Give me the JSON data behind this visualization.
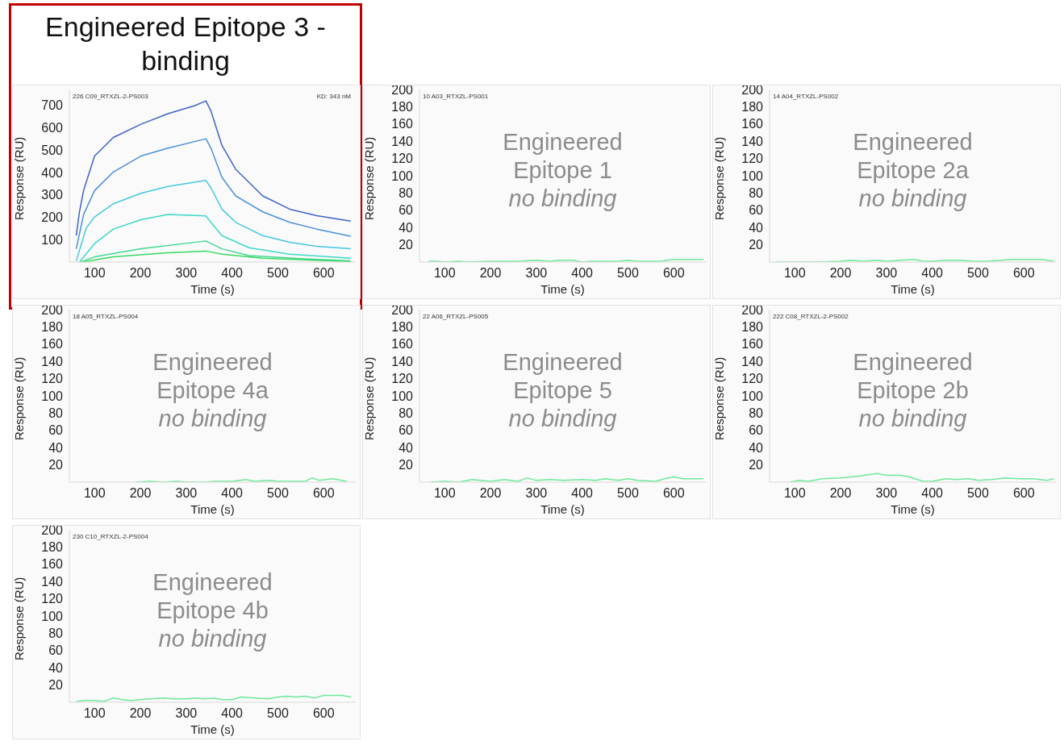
{
  "chart_data": [
    {
      "type": "line",
      "title": "Engineered Epitope 3 - binding",
      "xlabel": "Time (s)",
      "ylabel": "Response (RU)",
      "annotations": [
        "226 C09_RTXZL-2-PS003",
        "KD: 343 nM"
      ],
      "xlim": [
        45,
        670
      ],
      "xticks": [
        100,
        200,
        300,
        400,
        500,
        600
      ],
      "ylim": [
        0,
        770
      ],
      "yticks": [
        100,
        200,
        300,
        400,
        500,
        600,
        700
      ],
      "series": [
        {
          "color": "#3f63c8",
          "x": [
            60,
            67,
            76,
            100,
            141,
            201,
            260,
            319,
            343,
            354,
            378,
            408,
            467,
            526,
            585,
            659
          ],
          "values": [
            118,
            224,
            319,
            473,
            556,
            615,
            662,
            698,
            719,
            674,
            520,
            414,
            295,
            236,
            207,
            183
          ]
        },
        {
          "color": "#4a90d8",
          "x": [
            60,
            76,
            100,
            141,
            201,
            260,
            343,
            354,
            378,
            408,
            467,
            526,
            585,
            659
          ],
          "values": [
            59,
            212,
            319,
            402,
            473,
            508,
            550,
            508,
            378,
            295,
            224,
            177,
            147,
            115
          ]
        },
        {
          "color": "#45c8e0",
          "x": [
            60,
            82,
            100,
            141,
            201,
            260,
            343,
            354,
            378,
            408,
            467,
            526,
            585,
            659
          ],
          "values": [
            5,
            153,
            201,
            260,
            307,
            337,
            364,
            331,
            236,
            177,
            118,
            88,
            70,
            59
          ]
        },
        {
          "color": "#3cd8c8",
          "x": [
            67,
            100,
            141,
            201,
            260,
            343,
            354,
            378,
            437,
            526,
            659
          ],
          "values": [
            0,
            82,
            147,
            189,
            212,
            206,
            177,
            118,
            64,
            35,
            17
          ]
        },
        {
          "color": "#40d890",
          "x": [
            70,
            100,
            201,
            343,
            378,
            437,
            556,
            659
          ],
          "values": [
            0,
            23,
            59,
            94,
            59,
            29,
            14,
            5
          ]
        },
        {
          "color": "#38d860",
          "x": [
            73,
            141,
            260,
            343,
            378,
            467,
            659
          ],
          "values": [
            0,
            23,
            41,
            49,
            35,
            17,
            2
          ]
        }
      ]
    },
    {
      "type": "line",
      "xlabel": "Time (s)",
      "ylabel": "Response (RU)",
      "annotations": [
        "10 A03_RTXZL-PS001",
        "Engineered Epitope 1",
        "no binding"
      ],
      "xlim": [
        45,
        670
      ],
      "xticks": [
        100,
        200,
        300,
        400,
        500,
        600
      ],
      "ylim": [
        0,
        200
      ],
      "yticks": [
        20,
        40,
        60,
        80,
        100,
        120,
        140,
        160,
        180,
        200
      ],
      "series": [
        {
          "color": "#6ee89a",
          "x": [
            65,
            80,
            100,
            130,
            150,
            200,
            230,
            260,
            300,
            330,
            350,
            380,
            400,
            420,
            450,
            480,
            500,
            520,
            550,
            570,
            600,
            630,
            665
          ],
          "values": [
            1,
            1,
            0,
            1,
            0,
            1,
            1,
            1,
            2,
            1,
            2,
            2,
            0,
            1,
            1,
            1,
            2,
            1,
            1,
            1,
            3,
            3,
            3
          ]
        }
      ]
    },
    {
      "type": "line",
      "xlabel": "Time (s)",
      "ylabel": "Response (RU)",
      "annotations": [
        "14 A04_RTXZL-PS002",
        "Engineered Epitope 2a",
        "no binding"
      ],
      "xlim": [
        45,
        670
      ],
      "xticks": [
        100,
        200,
        300,
        400,
        500,
        600
      ],
      "ylim": [
        0,
        200
      ],
      "yticks": [
        20,
        40,
        60,
        80,
        100,
        120,
        140,
        160,
        180,
        200
      ],
      "series": [
        {
          "color": "#6ee89a",
          "x": [
            60,
            100,
            150,
            200,
            220,
            250,
            280,
            300,
            330,
            360,
            380,
            400,
            430,
            460,
            490,
            520,
            550,
            580,
            610,
            640,
            665
          ],
          "values": [
            0,
            0,
            0,
            1,
            2,
            1,
            2,
            1,
            2,
            3,
            1,
            1,
            2,
            2,
            1,
            1,
            2,
            3,
            3,
            3,
            1
          ]
        }
      ]
    },
    {
      "type": "line",
      "xlabel": "Time (s)",
      "ylabel": "Response (RU)",
      "annotations": [
        "18 A05_RTXZL-PS004",
        "Engineered Epitope 4a",
        "no binding"
      ],
      "xlim": [
        45,
        670
      ],
      "xticks": [
        100,
        200,
        300,
        400,
        500,
        600
      ],
      "ylim": [
        0,
        200
      ],
      "yticks": [
        20,
        40,
        60,
        80,
        100,
        120,
        140,
        160,
        180,
        200
      ],
      "series": [
        {
          "color": "#6ee89a",
          "x": [
            190,
            220,
            250,
            280,
            300,
            340,
            360,
            400,
            430,
            450,
            480,
            500,
            530,
            560,
            575,
            590,
            620,
            650
          ],
          "values": [
            0,
            1,
            0,
            1,
            0,
            0,
            1,
            1,
            3,
            1,
            2,
            1,
            1,
            1,
            5,
            2,
            4,
            1
          ]
        }
      ]
    },
    {
      "type": "line",
      "xlabel": "Time (s)",
      "ylabel": "Response (RU)",
      "annotations": [
        "22 A06_RTXZL-PS005",
        "Engineered Epitope 5",
        "no binding"
      ],
      "xlim": [
        45,
        670
      ],
      "xticks": [
        100,
        200,
        300,
        400,
        500,
        600
      ],
      "ylim": [
        0,
        200
      ],
      "yticks": [
        20,
        40,
        60,
        80,
        100,
        120,
        140,
        160,
        180,
        200
      ],
      "series": [
        {
          "color": "#6ee89a",
          "x": [
            70,
            100,
            130,
            160,
            200,
            230,
            260,
            280,
            300,
            330,
            360,
            400,
            430,
            450,
            480,
            500,
            520,
            560,
            580,
            600,
            620,
            665
          ],
          "values": [
            0,
            1,
            0,
            3,
            1,
            3,
            1,
            5,
            2,
            3,
            2,
            3,
            2,
            4,
            2,
            4,
            2,
            1,
            4,
            6,
            4,
            4
          ]
        }
      ]
    },
    {
      "type": "line",
      "xlabel": "Time (s)",
      "ylabel": "Response (RU)",
      "annotations": [
        "222 C08_RTXZL-2-PS002",
        "Engineered Epitope 2b",
        "no binding"
      ],
      "xlim": [
        45,
        670
      ],
      "xticks": [
        100,
        200,
        300,
        400,
        500,
        600
      ],
      "ylim": [
        0,
        200
      ],
      "yticks": [
        20,
        40,
        60,
        80,
        100,
        120,
        140,
        160,
        180,
        200
      ],
      "series": [
        {
          "color": "#6ee89a",
          "x": [
            90,
            110,
            130,
            160,
            200,
            240,
            280,
            300,
            330,
            350,
            380,
            400,
            430,
            450,
            480,
            500,
            530,
            560,
            590,
            620,
            650,
            665
          ],
          "values": [
            0,
            2,
            1,
            4,
            5,
            7,
            10,
            8,
            8,
            6,
            1,
            1,
            4,
            3,
            4,
            2,
            3,
            5,
            4,
            4,
            2,
            4
          ]
        }
      ]
    },
    {
      "type": "line",
      "xlabel": "Time (s)",
      "ylabel": "Response (RU)",
      "annotations": [
        "230 C10_RTXZL-2-PS004",
        "Engineered Epitope 4b",
        "no binding"
      ],
      "xlim": [
        45,
        670
      ],
      "xticks": [
        100,
        200,
        300,
        400,
        500,
        600
      ],
      "ylim": [
        0,
        200
      ],
      "yticks": [
        20,
        40,
        60,
        80,
        100,
        120,
        140,
        160,
        180,
        200
      ],
      "series": [
        {
          "color": "#6ee89a",
          "x": [
            60,
            80,
            100,
            120,
            140,
            160,
            180,
            200,
            220,
            250,
            270,
            300,
            320,
            340,
            360,
            380,
            400,
            420,
            450,
            480,
            500,
            520,
            540,
            560,
            580,
            600,
            620,
            640,
            660
          ],
          "values": [
            1,
            2,
            2,
            1,
            5,
            3,
            2,
            3,
            4,
            5,
            4,
            4,
            5,
            4,
            5,
            3,
            3,
            6,
            5,
            4,
            6,
            7,
            6,
            7,
            5,
            8,
            8,
            8,
            6
          ]
        }
      ]
    }
  ]
}
